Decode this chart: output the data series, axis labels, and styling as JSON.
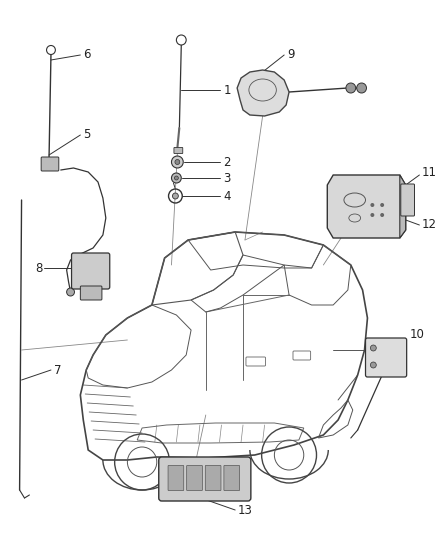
{
  "bg_color": "#ffffff",
  "line_color": "#333333",
  "label_color": "#222222",
  "figsize": [
    4.38,
    5.33
  ],
  "dpi": 100,
  "car_color": "#e8e8e8",
  "part_color": "#cccccc",
  "part_edge": "#333333",
  "leader_lw": 0.7,
  "part_lw": 0.8,
  "label_fs": 8.5
}
